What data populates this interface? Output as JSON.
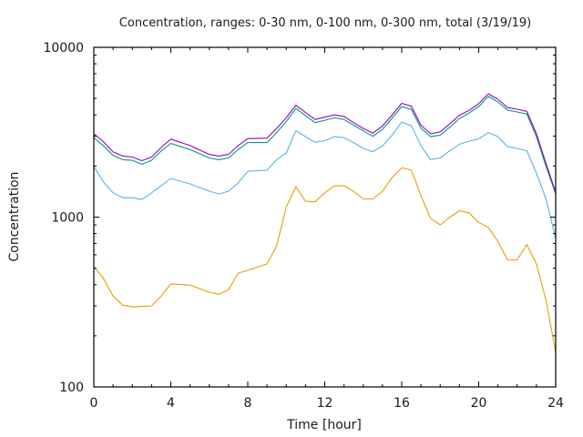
{
  "chart_data": {
    "type": "line",
    "title": "Concentration, ranges: 0-30 nm, 0-100 nm, 0-300 nm, total (3/19/19)",
    "xlabel": "Time [hour]",
    "ylabel": "Concentration",
    "xlim": [
      0,
      24
    ],
    "ylim": [
      100,
      10000
    ],
    "yscale": "log",
    "grid": false,
    "legend": "none",
    "x_ticks": [
      "0",
      "4",
      "8",
      "12",
      "16",
      "20",
      "24"
    ],
    "x_tick_values": [
      0,
      4,
      8,
      12,
      16,
      20,
      24
    ],
    "y_ticks": [
      "100",
      "1000",
      "10000"
    ],
    "y_tick_values": [
      100,
      1000,
      10000
    ],
    "x": [
      0,
      0.5,
      1,
      1.5,
      2,
      2.5,
      3,
      3.5,
      4,
      5,
      6,
      6.5,
      7,
      7.5,
      8,
      9,
      9.5,
      10,
      10.5,
      11,
      11.5,
      12,
      12.5,
      13,
      13.5,
      14,
      14.5,
      15,
      15.5,
      16,
      16.5,
      17,
      17.5,
      18,
      18.5,
      19,
      19.5,
      20,
      20.5,
      21,
      21.5,
      22,
      22.5,
      23,
      23.5,
      24
    ],
    "series": [
      {
        "name": "total",
        "color": "#9400d3",
        "values": [
          3100,
          2780,
          2420,
          2290,
          2260,
          2150,
          2260,
          2570,
          2880,
          2640,
          2340,
          2290,
          2340,
          2640,
          2900,
          2920,
          3330,
          3850,
          4560,
          4130,
          3760,
          3880,
          4000,
          3920,
          3600,
          3330,
          3120,
          3440,
          3990,
          4680,
          4500,
          3480,
          3100,
          3180,
          3550,
          3980,
          4250,
          4660,
          5320,
          4950,
          4420,
          4320,
          4200,
          3100,
          2070,
          1400
        ]
      },
      {
        "name": "0-300 nm",
        "color": "#009e73",
        "values": [
          2940,
          2630,
          2310,
          2180,
          2160,
          2050,
          2160,
          2450,
          2720,
          2500,
          2230,
          2180,
          2230,
          2500,
          2750,
          2750,
          3150,
          3660,
          4370,
          3960,
          3600,
          3720,
          3840,
          3760,
          3480,
          3220,
          2990,
          3290,
          3820,
          4480,
          4310,
          3340,
          2980,
          3040,
          3390,
          3810,
          4100,
          4480,
          5140,
          4770,
          4270,
          4160,
          4050,
          2980,
          1990,
          1370
        ]
      },
      {
        "name": "0-100 nm",
        "color": "#56b4e9",
        "values": [
          1990,
          1610,
          1390,
          1300,
          1300,
          1270,
          1390,
          1530,
          1690,
          1570,
          1420,
          1370,
          1420,
          1590,
          1860,
          1890,
          2180,
          2390,
          3230,
          2980,
          2760,
          2820,
          2980,
          2940,
          2750,
          2540,
          2430,
          2630,
          3040,
          3630,
          3450,
          2630,
          2180,
          2230,
          2460,
          2690,
          2800,
          2890,
          3150,
          2980,
          2600,
          2540,
          2460,
          1810,
          1280,
          750
        ]
      },
      {
        "name": "0-30 nm",
        "color": "#e69f00",
        "values": [
          510,
          435,
          343,
          303,
          296,
          298,
          300,
          343,
          404,
          398,
          361,
          352,
          374,
          468,
          486,
          530,
          676,
          1150,
          1510,
          1240,
          1230,
          1390,
          1530,
          1530,
          1420,
          1280,
          1280,
          1420,
          1710,
          1950,
          1890,
          1340,
          980,
          900,
          1000,
          1090,
          1060,
          930,
          870,
          720,
          560,
          560,
          690,
          530,
          324,
          160
        ]
      }
    ]
  }
}
